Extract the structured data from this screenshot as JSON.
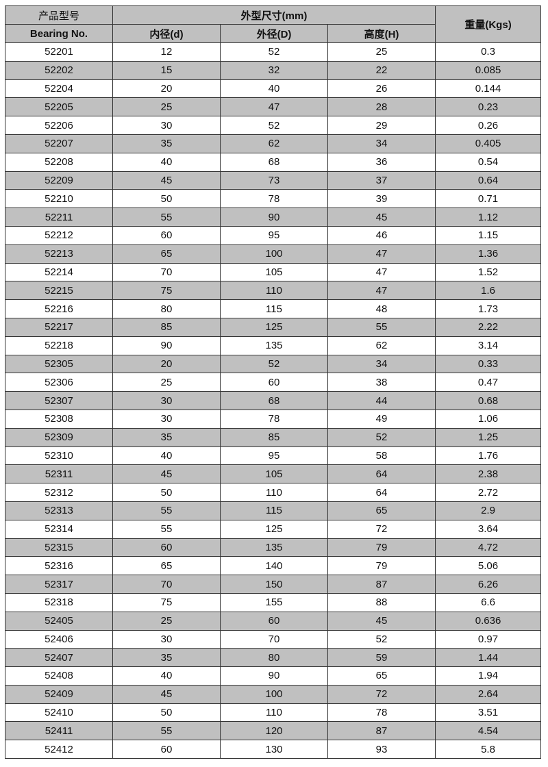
{
  "header": {
    "model_cn": "产品型号",
    "model_en": "Bearing No.",
    "dims": "外型尺寸(mm)",
    "inner": "内径(d)",
    "outer": "外径(D)",
    "height": "高度(H)",
    "weight": "重量(Kgs)"
  },
  "colors": {
    "header_bg": "#c0c0c0",
    "alt_row_bg": "#c0c0c0"
  },
  "rows": [
    [
      "52201",
      "12",
      "52",
      "25",
      "0.3"
    ],
    [
      "52202",
      "15",
      "32",
      "22",
      "0.085"
    ],
    [
      "52204",
      "20",
      "40",
      "26",
      "0.144"
    ],
    [
      "52205",
      "25",
      "47",
      "28",
      "0.23"
    ],
    [
      "52206",
      "30",
      "52",
      "29",
      "0.26"
    ],
    [
      "52207",
      "35",
      "62",
      "34",
      "0.405"
    ],
    [
      "52208",
      "40",
      "68",
      "36",
      "0.54"
    ],
    [
      "52209",
      "45",
      "73",
      "37",
      "0.64"
    ],
    [
      "52210",
      "50",
      "78",
      "39",
      "0.71"
    ],
    [
      "52211",
      "55",
      "90",
      "45",
      "1.12"
    ],
    [
      "52212",
      "60",
      "95",
      "46",
      "1.15"
    ],
    [
      "52213",
      "65",
      "100",
      "47",
      "1.36"
    ],
    [
      "52214",
      "70",
      "105",
      "47",
      "1.52"
    ],
    [
      "52215",
      "75",
      "110",
      "47",
      "1.6"
    ],
    [
      "52216",
      "80",
      "115",
      "48",
      "1.73"
    ],
    [
      "52217",
      "85",
      "125",
      "55",
      "2.22"
    ],
    [
      "52218",
      "90",
      "135",
      "62",
      "3.14"
    ],
    [
      "52305",
      "20",
      "52",
      "34",
      "0.33"
    ],
    [
      "52306",
      "25",
      "60",
      "38",
      "0.47"
    ],
    [
      "52307",
      "30",
      "68",
      "44",
      "0.68"
    ],
    [
      "52308",
      "30",
      "78",
      "49",
      "1.06"
    ],
    [
      "52309",
      "35",
      "85",
      "52",
      "1.25"
    ],
    [
      "52310",
      "40",
      "95",
      "58",
      "1.76"
    ],
    [
      "52311",
      "45",
      "105",
      "64",
      "2.38"
    ],
    [
      "52312",
      "50",
      "110",
      "64",
      "2.72"
    ],
    [
      "52313",
      "55",
      "115",
      "65",
      "2.9"
    ],
    [
      "52314",
      "55",
      "125",
      "72",
      "3.64"
    ],
    [
      "52315",
      "60",
      "135",
      "79",
      "4.72"
    ],
    [
      "52316",
      "65",
      "140",
      "79",
      "5.06"
    ],
    [
      "52317",
      "70",
      "150",
      "87",
      "6.26"
    ],
    [
      "52318",
      "75",
      "155",
      "88",
      "6.6"
    ],
    [
      "52405",
      "25",
      "60",
      "45",
      "0.636"
    ],
    [
      "52406",
      "30",
      "70",
      "52",
      "0.97"
    ],
    [
      "52407",
      "35",
      "80",
      "59",
      "1.44"
    ],
    [
      "52408",
      "40",
      "90",
      "65",
      "1.94"
    ],
    [
      "52409",
      "45",
      "100",
      "72",
      "2.64"
    ],
    [
      "52410",
      "50",
      "110",
      "78",
      "3.51"
    ],
    [
      "52411",
      "55",
      "120",
      "87",
      "4.54"
    ],
    [
      "52412",
      "60",
      "130",
      "93",
      "5.8"
    ]
  ]
}
